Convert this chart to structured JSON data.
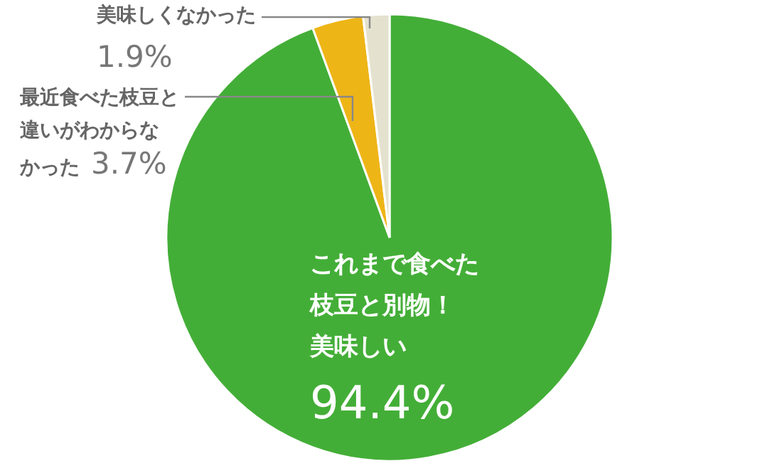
{
  "chart_data": {
    "type": "pie",
    "categories": [
      "これまで食べた枝豆と別物！美味しい",
      "最近食べた枝豆と違いがわからなかった",
      "美味しくなかった"
    ],
    "values": [
      94.4,
      3.7,
      1.9
    ],
    "colors": [
      "#43ae37",
      "#eeb517",
      "#e4e2cf"
    ],
    "value_labels": [
      "94.4%",
      "3.7%",
      "1.9%"
    ]
  }
}
